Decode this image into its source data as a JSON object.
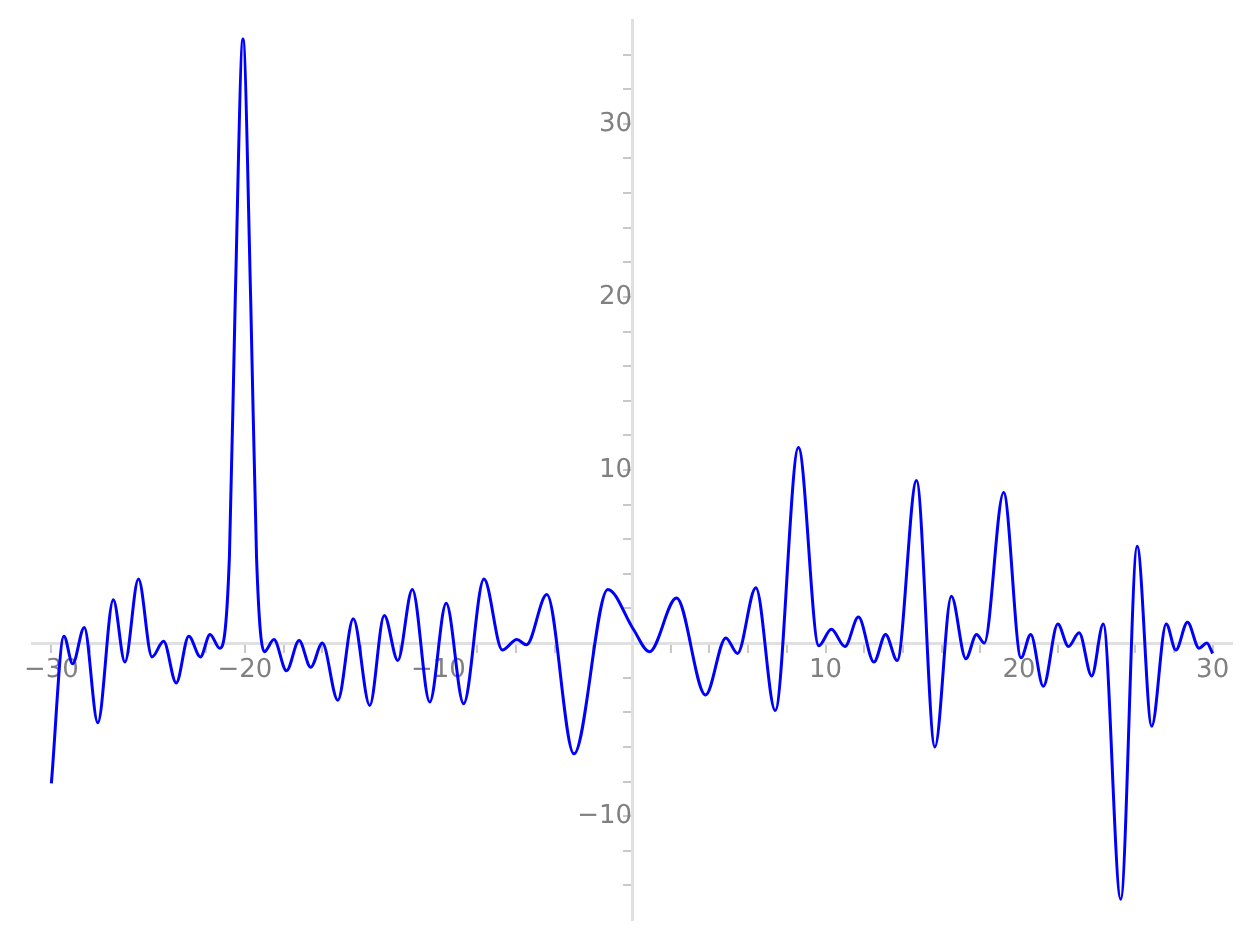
{
  "chart_data": {
    "type": "line",
    "grid": false,
    "legend": false,
    "marker": "none",
    "line_style": "solid",
    "xlim": [
      -31,
      31
    ],
    "ylim": [
      -16,
      36
    ],
    "xticks": [
      {
        "value": -30,
        "label": "−30"
      },
      {
        "value": -28,
        "label": null
      },
      {
        "value": -26,
        "label": null
      },
      {
        "value": -24,
        "label": null
      },
      {
        "value": -22,
        "label": null
      },
      {
        "value": -20,
        "label": "−20"
      },
      {
        "value": -18,
        "label": null
      },
      {
        "value": -16,
        "label": null
      },
      {
        "value": -14,
        "label": null
      },
      {
        "value": -12,
        "label": null
      },
      {
        "value": -10,
        "label": "−10"
      },
      {
        "value": -8,
        "label": null
      },
      {
        "value": -6,
        "label": null
      },
      {
        "value": -4,
        "label": null
      },
      {
        "value": -2,
        "label": null
      },
      {
        "value": 2,
        "label": null
      },
      {
        "value": 4,
        "label": null
      },
      {
        "value": 6,
        "label": null
      },
      {
        "value": 8,
        "label": null
      },
      10,
      {
        "value": 12,
        "label": null
      },
      {
        "value": 14,
        "label": null
      },
      {
        "value": 16,
        "label": null
      },
      {
        "value": 18,
        "label": null
      },
      20,
      {
        "value": 22,
        "label": null
      },
      {
        "value": 24,
        "label": null
      },
      {
        "value": 26,
        "label": null
      },
      {
        "value": 28,
        "label": null
      },
      30
    ],
    "yticks": [
      {
        "value": -14,
        "label": null
      },
      {
        "value": -12,
        "label": null
      },
      {
        "value": -10,
        "label": "−10"
      },
      {
        "value": -8,
        "label": null
      },
      {
        "value": -6,
        "label": null
      },
      {
        "value": -4,
        "label": null
      },
      {
        "value": -2,
        "label": null
      },
      {
        "value": 2,
        "label": null
      },
      {
        "value": 4,
        "label": null
      },
      {
        "value": 6,
        "label": null
      },
      {
        "value": 8,
        "label": null
      },
      10,
      {
        "value": 12,
        "label": null
      },
      {
        "value": 14,
        "label": null
      },
      {
        "value": 16,
        "label": null
      },
      {
        "value": 18,
        "label": null
      },
      20,
      {
        "value": 22,
        "label": null
      },
      {
        "value": 24,
        "label": null
      },
      {
        "value": 26,
        "label": null
      },
      {
        "value": 28,
        "label": null
      },
      30,
      {
        "value": 32,
        "label": null
      },
      {
        "value": 34,
        "label": null
      }
    ],
    "series": [
      {
        "color": "#0000ff",
        "x": [
          -30,
          -29.35,
          -28.9,
          -28.3,
          -27.6,
          -26.8,
          -26.2,
          -25.5,
          -24.8,
          -24.2,
          -23.55,
          -22.9,
          -22.3,
          -21.8,
          -21.3,
          -20.8,
          -20.5,
          -20.1,
          -19.7,
          -19.4,
          -19,
          -18.5,
          -17.85,
          -17.2,
          -16.6,
          -16,
          -15.2,
          -14.4,
          -13.55,
          -12.8,
          -12.1,
          -11.35,
          -10.45,
          -9.6,
          -8.7,
          -7.65,
          -6.7,
          -5.95,
          -5.45,
          -4.4,
          -3,
          -1.25,
          0.07,
          0.9,
          2.3,
          3.8,
          4.85,
          5.45,
          6.4,
          7.4,
          8.6,
          9.65,
          10.3,
          11,
          11.7,
          12.5,
          13.1,
          13.7,
          14.7,
          15.65,
          16.5,
          17.25,
          17.8,
          18.2,
          19.2,
          20.1,
          20.6,
          21.25,
          22,
          22.55,
          23.1,
          23.75,
          24.35,
          25.25,
          26.1,
          26.85,
          27.6,
          28.1,
          28.7,
          29.3,
          29.7,
          30
        ],
        "values": [
          -8.1,
          0.4,
          -1.2,
          0.9,
          -4.6,
          2.5,
          -1.1,
          3.7,
          -0.8,
          0.1,
          -2.3,
          0.4,
          -0.8,
          0.5,
          -0.3,
          5,
          19.8,
          34.9,
          19.8,
          5,
          -0.5,
          0.2,
          -1.6,
          0.15,
          -1.4,
          0,
          -3.3,
          1.4,
          -3.6,
          1.6,
          -1,
          3.1,
          -3.4,
          2.3,
          -3.5,
          3.7,
          -0.4,
          0.2,
          -0.1,
          2.8,
          -6.4,
          3.1,
          0.8,
          -0.5,
          2.6,
          -3,
          0.3,
          -0.6,
          3.2,
          -3.9,
          11.3,
          -0.15,
          0.8,
          -0.2,
          1.5,
          -1.1,
          0.5,
          -1,
          9.4,
          -6,
          2.7,
          -0.9,
          0.5,
          0,
          8.7,
          -0.85,
          0.5,
          -2.5,
          1.1,
          -0.2,
          0.6,
          -1.9,
          1.1,
          -14.8,
          5.6,
          -4.8,
          1.1,
          -0.4,
          1.2,
          -0.3,
          0,
          -0.6
        ]
      }
    ]
  }
}
